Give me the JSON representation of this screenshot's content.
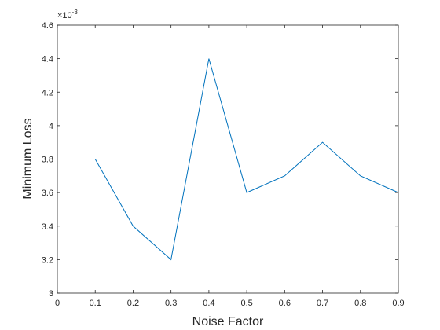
{
  "chart_data": {
    "type": "line",
    "x_label": "Noise Factor",
    "y_label": "Minimum Loss",
    "y_multiplier": {
      "base": "×10",
      "exponent": "-3"
    },
    "x": [
      0,
      0.1,
      0.2,
      0.3,
      0.4,
      0.5,
      0.6,
      0.7,
      0.8,
      0.9
    ],
    "values": [
      3.8,
      3.8,
      3.4,
      3.2,
      4.4,
      3.6,
      3.7,
      3.9,
      3.7,
      3.6
    ],
    "color": "#0072bd",
    "xlim": [
      0,
      0.9
    ],
    "xticks": [
      0,
      0.1,
      0.2,
      0.3,
      0.4,
      0.5,
      0.6,
      0.7,
      0.8,
      0.9
    ],
    "ylim": [
      3,
      4.6
    ],
    "yticks": [
      3,
      3.2,
      3.4,
      3.6,
      3.8,
      4,
      4.2,
      4.4,
      4.6
    ],
    "grid": false
  }
}
